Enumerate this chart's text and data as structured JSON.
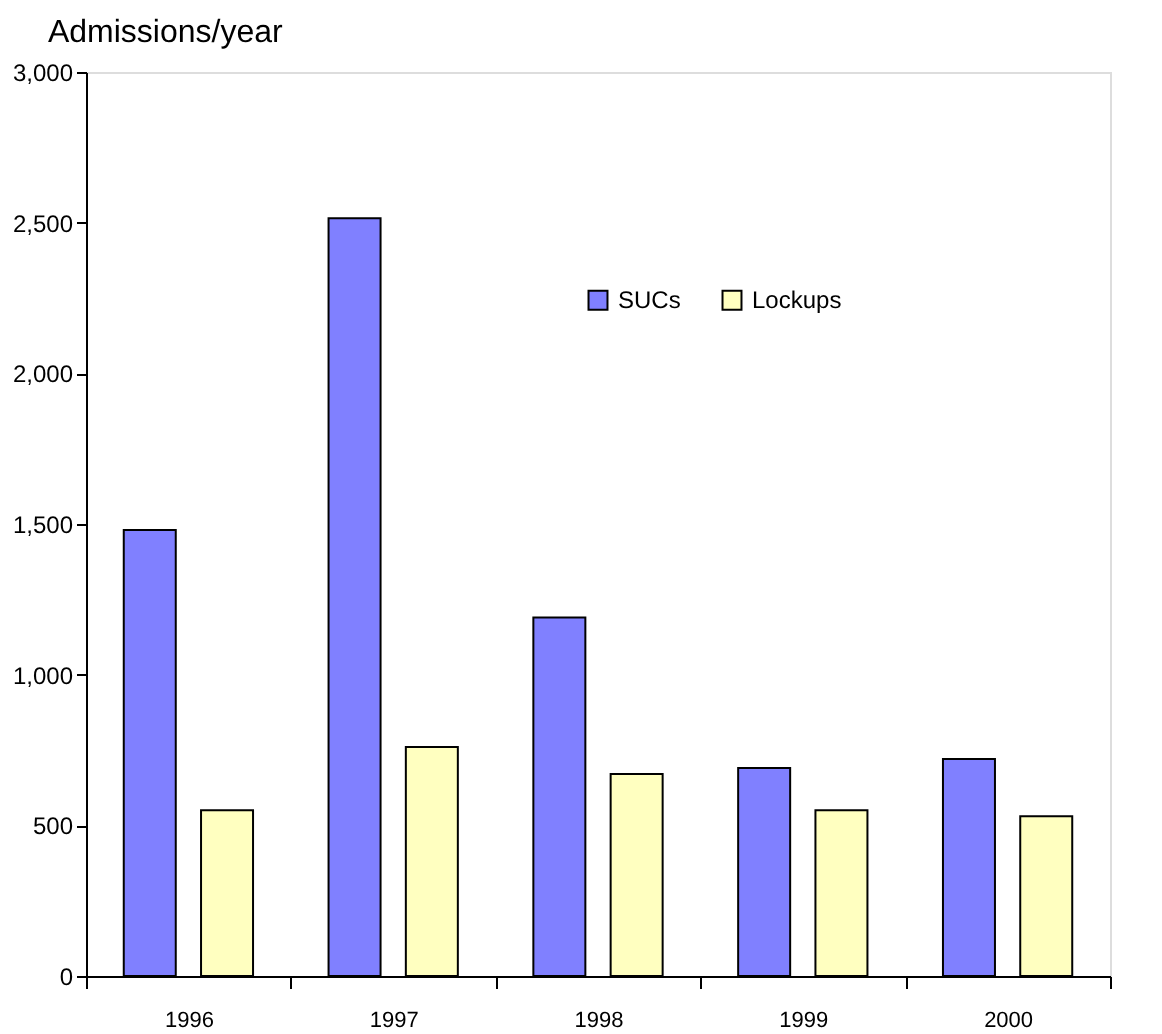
{
  "chart_data": {
    "type": "bar",
    "title": "Admissions/year",
    "categories": [
      "1996",
      "1997",
      "1998",
      "1999",
      "2000"
    ],
    "series": [
      {
        "name": "SUCs",
        "color": "#8080ff",
        "values": [
          1480,
          2515,
          1190,
          690,
          720
        ]
      },
      {
        "name": "Lockups",
        "color": "#ffffc0",
        "values": [
          550,
          760,
          670,
          550,
          530
        ]
      }
    ],
    "ylim": [
      0,
      3000
    ],
    "yticks": [
      {
        "value": 0,
        "label": "0"
      },
      {
        "value": 500,
        "label": "500"
      },
      {
        "value": 1000,
        "label": "1,000"
      },
      {
        "value": 1500,
        "label": "1,500"
      },
      {
        "value": 2000,
        "label": "2,000"
      },
      {
        "value": 2500,
        "label": "2,500"
      },
      {
        "value": 3000,
        "label": "3,000"
      }
    ],
    "grid": false,
    "legend": "top right"
  }
}
